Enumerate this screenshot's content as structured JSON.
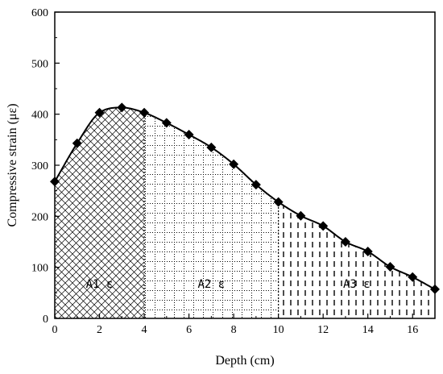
{
  "chart_data": {
    "type": "line",
    "xlabel": "Depth (cm)",
    "ylabel": "Compressive strain (με)",
    "xlim": [
      0,
      17
    ],
    "ylim": [
      0,
      600
    ],
    "xticks": [
      0,
      2,
      4,
      6,
      8,
      10,
      12,
      14,
      16
    ],
    "yticks": [
      0,
      100,
      200,
      300,
      400,
      500,
      600
    ],
    "grid": false,
    "legend": "none",
    "series": [
      {
        "x": [
          0,
          1,
          2,
          3,
          4,
          5,
          6,
          7,
          8,
          9,
          10,
          11,
          12,
          13,
          14,
          15,
          16,
          17
        ],
        "values": [
          268,
          343,
          403,
          413,
          403,
          383,
          360,
          335,
          302,
          262,
          228,
          201,
          181,
          150,
          131,
          101,
          81,
          57
        ],
        "marker": "diamond",
        "color": "#000000"
      }
    ],
    "regions": [
      {
        "label": "A1 ε",
        "x_start": 0,
        "x_end": 4,
        "pattern": "crosshatch"
      },
      {
        "label": "A2 ε",
        "x_start": 4,
        "x_end": 10,
        "pattern": "dotted-grid"
      },
      {
        "label": "A3 ε",
        "x_start": 10,
        "x_end": 17,
        "pattern": "vertical-dashes"
      }
    ]
  }
}
